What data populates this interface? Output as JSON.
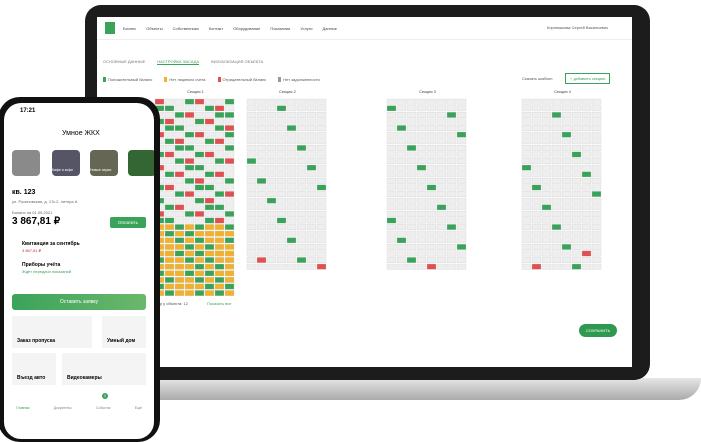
{
  "laptop": {
    "nav": [
      "Бизнес",
      "Объекты",
      "Собственники",
      "Контакт",
      "Оборудование",
      "Показания",
      "Услуги",
      "Данные"
    ],
    "user": "Корнюшкова Сергей Васильевич",
    "tabs": [
      "ОСНОВНЫЕ ДАННЫЕ",
      "НАСТРОЙКА ФАСАДА",
      "ВИЗУАЛИЗАЦИЯ ОБЪЕКТА"
    ],
    "legend": [
      "Положительный баланс",
      "Нет лицевого счета",
      "Отрицательный баланс",
      "Нет задолженности"
    ],
    "download": "Скачать шаблон",
    "add": "+ добавить секцию",
    "sections": [
      "Секция 1",
      "Секция 2",
      "Секция 3",
      "Секция 4"
    ],
    "footer": "Квартир у объекта: 12",
    "show_all": "Показать все",
    "save": "СОХРАНИТЬ"
  },
  "phone": {
    "time": "17:21",
    "title": "Умное ЖКХ",
    "stories": [
      "Кафе и кофе",
      "Новые серии"
    ],
    "apartment": "кв. 123",
    "address": "ул. Русиновская, д. 17к.2, литера А",
    "balance_label": "Баланс на 01.09.2021",
    "balance": "3 867,81 ₽",
    "pay": "Оплатить",
    "receipt": "Квитанция за сентябрь",
    "receipt_sum": "3 867,81 ₽",
    "meters": "Приборы учёта",
    "meters_note": "Ждёт передачи показаний",
    "request": "Оставить заявку",
    "tiles": [
      "Заказ пропуска",
      "Умный дом",
      "Въезд авто",
      "Видеокамеры"
    ],
    "tabbar": [
      "Главная",
      "Документы",
      "События",
      "Ещё"
    ],
    "badge": "1"
  }
}
